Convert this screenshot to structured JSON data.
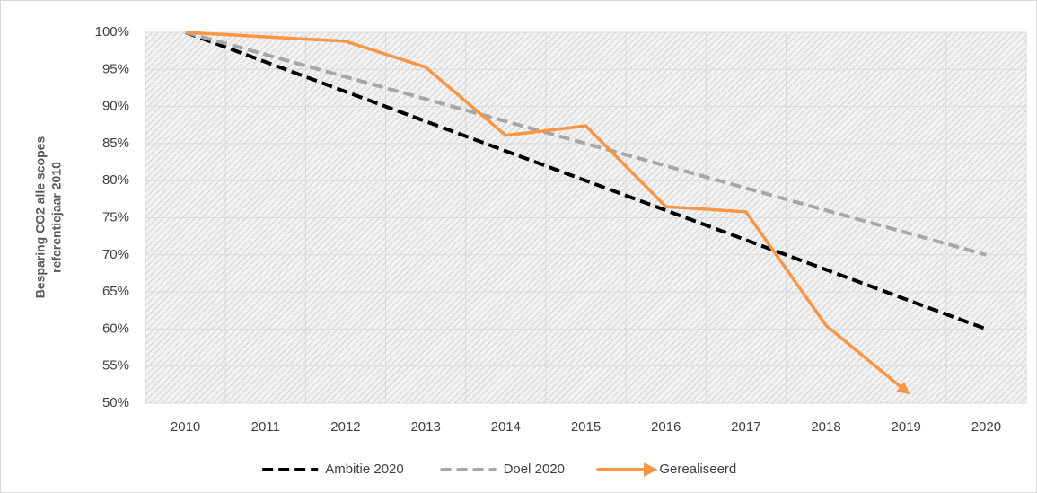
{
  "chart_data": {
    "type": "line",
    "ylabel": [
      "Besparing CO2 alle scopes",
      "referentiejaar 2010"
    ],
    "categories": [
      "2010",
      "2011",
      "2012",
      "2013",
      "2014",
      "2015",
      "2016",
      "2017",
      "2018",
      "2019",
      "2020"
    ],
    "series": [
      {
        "name": "Ambitie 2020",
        "color": "#000000",
        "dash": true,
        "values": [
          100,
          96,
          92,
          88,
          84,
          80,
          76,
          72,
          68,
          64,
          60
        ]
      },
      {
        "name": "Doel 2020",
        "color": "#a6a6a6",
        "dash": true,
        "values": [
          100,
          97,
          94,
          91,
          88,
          85,
          82,
          79,
          76,
          73,
          70
        ]
      },
      {
        "name": "Gerealiseerd",
        "color": "#f79646",
        "dash": false,
        "arrow": true,
        "values": [
          100,
          99.4,
          98.8,
          95.3,
          86.1,
          87.4,
          76.5,
          75.8,
          60.5,
          51.6,
          null
        ]
      }
    ],
    "ylim": [
      50,
      100
    ],
    "yticks": [
      {
        "value": 50,
        "label": "50%"
      },
      {
        "value": 55,
        "label": "55%"
      },
      {
        "value": 60,
        "label": "60%"
      },
      {
        "value": 65,
        "label": "65%"
      },
      {
        "value": 70,
        "label": "70%"
      },
      {
        "value": 75,
        "label": "75%"
      },
      {
        "value": 80,
        "label": "80%"
      },
      {
        "value": 85,
        "label": "85%"
      },
      {
        "value": 90,
        "label": "90%"
      },
      {
        "value": 95,
        "label": "95%"
      },
      {
        "value": 100,
        "label": "100%"
      }
    ],
    "grid": true,
    "legend": "bottom"
  }
}
